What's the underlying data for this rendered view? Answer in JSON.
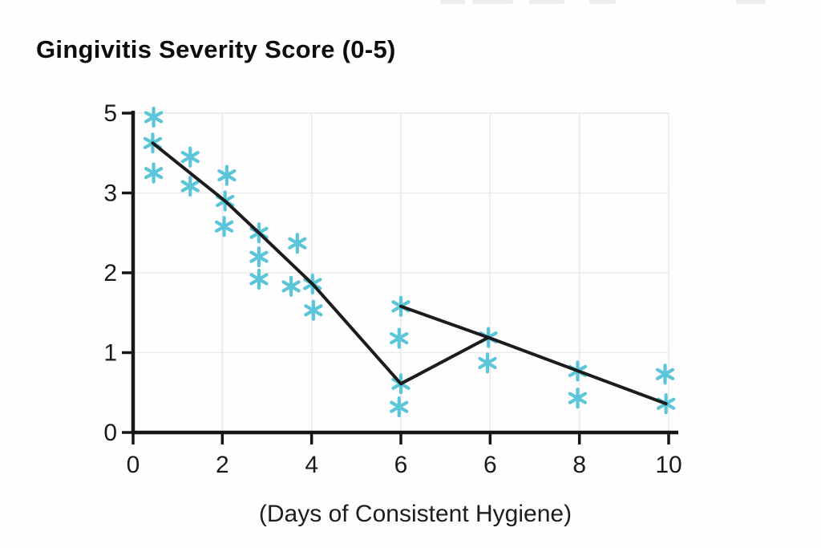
{
  "colors": {
    "marker": "#5bc5d9",
    "trend_line": "#1c1c1c",
    "grid": "#e9e9e9",
    "axis": "#161616",
    "tick_label": "#1a1a1a",
    "artifact_bar": "#ededed"
  },
  "chart_data": {
    "type": "scatter",
    "title": "Gingivitis Severity Score (0-5)",
    "xlabel": "(Days of Consistent Hygiene)",
    "ylabel": "",
    "grid": true,
    "legend": "none",
    "marker_style": "six-spoke-asterisk",
    "x_tick_labels": [
      "0",
      "2",
      "4",
      "6",
      "6",
      "8",
      "10"
    ],
    "y_tick_labels": [
      "5",
      "3",
      "2",
      "1",
      "0"
    ],
    "y_tick_values": [
      5,
      3,
      2,
      1,
      0
    ],
    "axis_note_y": "tick labels 5,3,2,1,0 are equally spaced (nonlinear axis as drawn)",
    "axis_note_x": "the label 6 appears twice on equally spaced ticks",
    "points": [
      {
        "pos": 0.23,
        "score": 4.9
      },
      {
        "pos": 0.22,
        "score": 4.25
      },
      {
        "pos": 0.23,
        "score": 3.5
      },
      {
        "pos": 0.64,
        "score": 3.9
      },
      {
        "pos": 0.64,
        "score": 3.17
      },
      {
        "pos": 1.05,
        "score": 3.44
      },
      {
        "pos": 1.03,
        "score": 2.9
      },
      {
        "pos": 1.02,
        "score": 2.58
      },
      {
        "pos": 1.41,
        "score": 2.5
      },
      {
        "pos": 1.41,
        "score": 2.2
      },
      {
        "pos": 1.41,
        "score": 1.92
      },
      {
        "pos": 1.84,
        "score": 2.37
      },
      {
        "pos": 1.77,
        "score": 1.83
      },
      {
        "pos": 2.01,
        "score": 1.86
      },
      {
        "pos": 2.02,
        "score": 1.53
      },
      {
        "pos": 3.0,
        "score": 1.58
      },
      {
        "pos": 2.98,
        "score": 1.18
      },
      {
        "pos": 3.0,
        "score": 0.61
      },
      {
        "pos": 2.98,
        "score": 0.32
      },
      {
        "pos": 3.98,
        "score": 1.19
      },
      {
        "pos": 3.97,
        "score": 0.87
      },
      {
        "pos": 4.98,
        "score": 0.77
      },
      {
        "pos": 4.98,
        "score": 0.43
      },
      {
        "pos": 5.96,
        "score": 0.73
      },
      {
        "pos": 5.97,
        "score": 0.36
      }
    ],
    "trend_line": [
      [
        0.22,
        4.25
      ],
      [
        1.03,
        2.9
      ],
      [
        1.41,
        2.5
      ],
      [
        2.01,
        1.86
      ],
      [
        3.0,
        0.61
      ],
      [
        3.98,
        1.19
      ],
      [
        5.97,
        0.36
      ]
    ],
    "trend_line_branch": [
      [
        3.0,
        1.58
      ],
      [
        3.98,
        1.19
      ]
    ]
  }
}
